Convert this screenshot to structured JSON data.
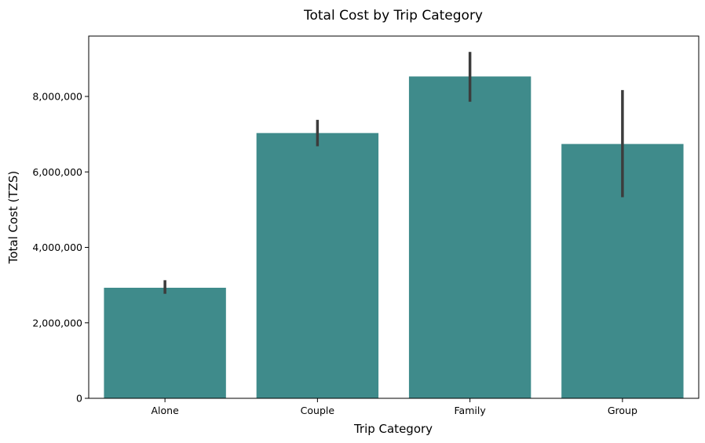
{
  "chart_data": {
    "type": "bar",
    "title": "Total Cost by Trip Category",
    "xlabel": "Trip Category",
    "ylabel": "Total Cost (TZS)",
    "categories": [
      "Alone",
      "Couple",
      "Family",
      "Group"
    ],
    "values": [
      2930000,
      7030000,
      8530000,
      6740000
    ],
    "error_bars": [
      {
        "low": 2770000,
        "high": 3130000
      },
      {
        "low": 6680000,
        "high": 7380000
      },
      {
        "low": 7860000,
        "high": 9180000
      },
      {
        "low": 5330000,
        "high": 8170000
      }
    ],
    "yticks": [
      0,
      2000000,
      4000000,
      6000000,
      8000000
    ],
    "ytick_labels": [
      "0",
      "2,000,000",
      "4,000,000",
      "6,000,000",
      "8,000,000"
    ],
    "ylim": [
      0,
      9600000
    ],
    "grid": false,
    "bar_color": "#3f8b8b",
    "error_color": "#3c3c3c"
  }
}
